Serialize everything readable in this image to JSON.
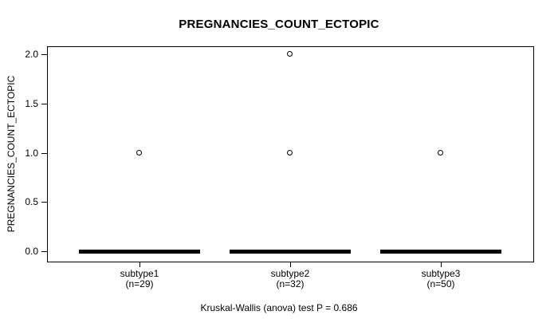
{
  "chart_data": {
    "type": "boxplot",
    "title": "PREGNANCIES_COUNT_ECTOPIC",
    "ylabel": "PREGNANCIES_COUNT_ECTOPIC",
    "xlabel": "",
    "ylim": [
      0.0,
      2.0
    ],
    "grid": "off",
    "legend": "none",
    "yticks": [
      {
        "value": 0.0,
        "label": "0.0"
      },
      {
        "value": 0.5,
        "label": "0.5"
      },
      {
        "value": 1.0,
        "label": "1.0"
      },
      {
        "value": 1.5,
        "label": "1.5"
      },
      {
        "value": 2.0,
        "label": "2.0"
      }
    ],
    "groups": [
      {
        "label": "subtype1",
        "n_label": "(n=29)",
        "n": 29,
        "whisker_low": 0.0,
        "q1": 0.0,
        "median": 0.0,
        "q3": 0.0,
        "whisker_high": 0.0,
        "outliers": [
          1.0
        ]
      },
      {
        "label": "subtype2",
        "n_label": "(n=32)",
        "n": 32,
        "whisker_low": 0.0,
        "q1": 0.0,
        "median": 0.0,
        "q3": 0.0,
        "whisker_high": 0.0,
        "outliers": [
          1.0,
          2.0
        ]
      },
      {
        "label": "subtype3",
        "n_label": "(n=50)",
        "n": 50,
        "whisker_low": 0.0,
        "q1": 0.0,
        "median": 0.0,
        "q3": 0.0,
        "whisker_high": 0.0,
        "outliers": [
          1.0
        ]
      }
    ],
    "caption": "Kruskal-Wallis (anova) test P = 0.686",
    "colors": {
      "foreground": "#000000",
      "background": "#FFFFFF"
    }
  }
}
